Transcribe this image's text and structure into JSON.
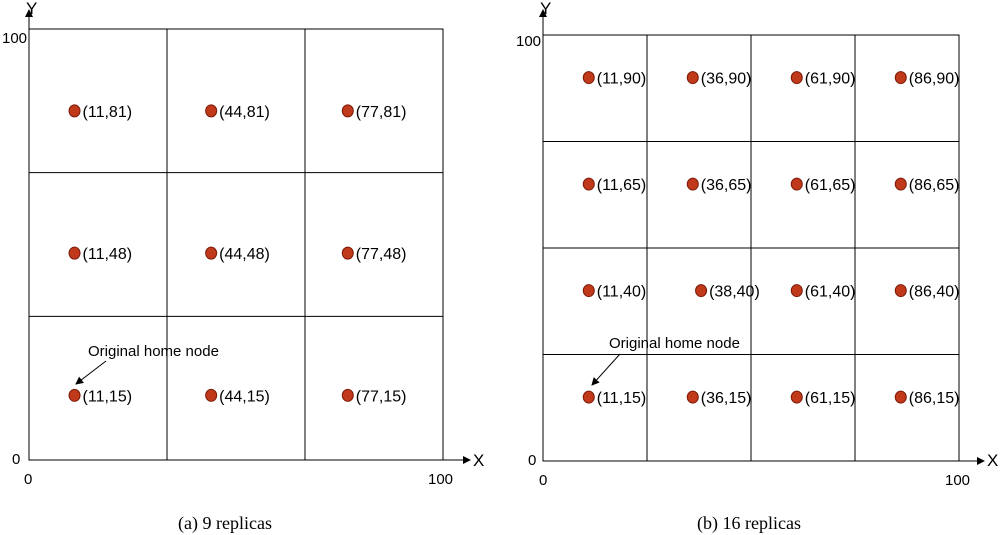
{
  "colors": {
    "point": "#c0391b",
    "point_edge": "#7a1a08",
    "grid": "#000000"
  },
  "panels": [
    {
      "caption": "(a)  9 replicas",
      "axis": {
        "x_label": "X",
        "y_label": "Y",
        "x_origin": "0",
        "y_origin": "0",
        "x_max": "100",
        "y_max": "100"
      },
      "grid": {
        "cols": 3,
        "rows": 3
      },
      "annotation": "Original home node",
      "points": [
        {
          "x": 11,
          "y": 81,
          "label": "(11,81)"
        },
        {
          "x": 44,
          "y": 81,
          "label": "(44,81)"
        },
        {
          "x": 77,
          "y": 81,
          "label": "(77,81)"
        },
        {
          "x": 11,
          "y": 48,
          "label": "(11,48)"
        },
        {
          "x": 44,
          "y": 48,
          "label": "(44,48)"
        },
        {
          "x": 77,
          "y": 48,
          "label": "(77,48)"
        },
        {
          "x": 11,
          "y": 15,
          "label": "(11,15)"
        },
        {
          "x": 44,
          "y": 15,
          "label": "(44,15)"
        },
        {
          "x": 77,
          "y": 15,
          "label": "(77,15)"
        }
      ]
    },
    {
      "caption": "(b)  16 replicas",
      "axis": {
        "x_label": "X",
        "y_label": "Y",
        "x_origin": "0",
        "y_origin": "0",
        "x_max": "100",
        "y_max": "100"
      },
      "grid": {
        "cols": 4,
        "rows": 4
      },
      "annotation": "Original home node",
      "points": [
        {
          "x": 11,
          "y": 90,
          "label": "(11,90)"
        },
        {
          "x": 36,
          "y": 90,
          "label": "(36,90)"
        },
        {
          "x": 61,
          "y": 90,
          "label": "(61,90)"
        },
        {
          "x": 86,
          "y": 90,
          "label": "(86,90)"
        },
        {
          "x": 11,
          "y": 65,
          "label": "(11,65)"
        },
        {
          "x": 36,
          "y": 65,
          "label": "(36,65)"
        },
        {
          "x": 61,
          "y": 65,
          "label": "(61,65)"
        },
        {
          "x": 86,
          "y": 65,
          "label": "(86,65)"
        },
        {
          "x": 11,
          "y": 40,
          "label": "(11,40)"
        },
        {
          "x": 38,
          "y": 40,
          "label": "(38,40)"
        },
        {
          "x": 61,
          "y": 40,
          "label": "(61,40)"
        },
        {
          "x": 86,
          "y": 40,
          "label": "(86,40)"
        },
        {
          "x": 11,
          "y": 15,
          "label": "(11,15)"
        },
        {
          "x": 36,
          "y": 15,
          "label": "(36,15)"
        },
        {
          "x": 61,
          "y": 15,
          "label": "(61,15)"
        },
        {
          "x": 86,
          "y": 15,
          "label": "(86,15)"
        }
      ]
    }
  ]
}
